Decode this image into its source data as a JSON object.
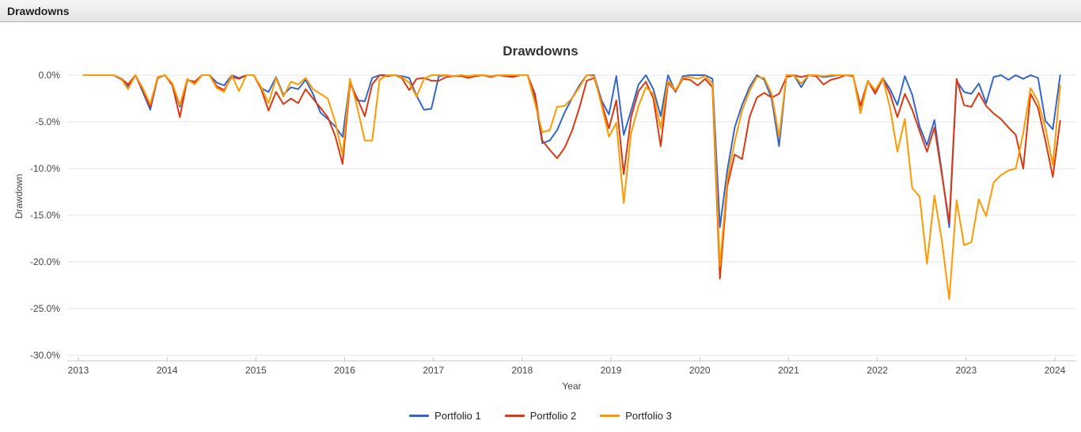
{
  "header": {
    "title": "Drawdowns"
  },
  "chart_data": {
    "type": "line",
    "title": "Drawdowns",
    "xlabel": "Year",
    "ylabel": "Drawdown",
    "x_tick_labels": [
      "2013",
      "2014",
      "2015",
      "2016",
      "2017",
      "2018",
      "2019",
      "2020",
      "2021",
      "2022",
      "2023",
      "2024"
    ],
    "y_tick_labels": [
      "0.0%",
      "-5.0%",
      "-10.0%",
      "-15.0%",
      "-20.0%",
      "-25.0%",
      "-30.0%"
    ],
    "y_tick_values": [
      0,
      -5,
      -10,
      -15,
      -20,
      -25,
      -30
    ],
    "ylim": [
      -30,
      0
    ],
    "xlim": [
      2013,
      2024
    ],
    "x_start": "2013-01",
    "x_step": "1 month",
    "y_unit": "percent drawdown",
    "grid": true,
    "legend_position": "bottom",
    "series": [
      {
        "name": "Portfolio 1",
        "color": "#3366CC",
        "values": [
          0,
          0,
          0,
          0,
          0,
          -0.4,
          -1.2,
          0,
          -1.8,
          -3.7,
          -0.3,
          0,
          -1.0,
          -3.4,
          -0.5,
          -0.9,
          0,
          0,
          -0.8,
          -1.1,
          0,
          -0.3,
          0,
          0,
          -1.4,
          -1.8,
          -0.2,
          -2.1,
          -1.3,
          -1.5,
          -0.5,
          -2.0,
          -4.0,
          -4.7,
          -5.5,
          -6.6,
          -0.6,
          -2.7,
          -2.8,
          -0.3,
          0,
          0,
          0,
          -0.1,
          -0.3,
          -2.2,
          -3.7,
          -3.6,
          -0.1,
          0,
          -0.1,
          0,
          -0.1,
          0,
          0,
          -0.1,
          0,
          0,
          -0.1,
          0,
          0,
          -2.5,
          -7.3,
          -7.0,
          -5.9,
          -4.0,
          -2.5,
          -1.1,
          0,
          0,
          -2.7,
          -4.2,
          -0.1,
          -6.4,
          -3.8,
          -1.0,
          0,
          -1.5,
          -4.4,
          0,
          -1.8,
          -0.1,
          0,
          0,
          0,
          -0.4,
          -16.3,
          -10.2,
          -5.6,
          -3.2,
          -1.3,
          0,
          -0.5,
          -2.5,
          -7.6,
          0,
          0,
          -1.3,
          0,
          0,
          -0.2,
          -0.1,
          0,
          0,
          0,
          -4.0,
          -0.6,
          -1.8,
          -0.3,
          -1.5,
          -3.2,
          -0.1,
          -2.1,
          -5.5,
          -7.5,
          -4.8,
          -10.4,
          -16.3,
          -0.6,
          -1.8,
          -2.0,
          -0.9,
          -3.0,
          -0.2,
          0,
          -0.5,
          0,
          -0.4,
          0,
          -0.3,
          -4.9,
          -5.8,
          0
        ]
      },
      {
        "name": "Portfolio 2",
        "color": "#DC3912",
        "values": [
          0,
          0,
          0,
          0,
          0,
          -0.3,
          -1.0,
          0,
          -1.6,
          -3.4,
          -0.3,
          0,
          -1.1,
          -4.5,
          -0.5,
          -0.7,
          0,
          0,
          -1.2,
          -1.6,
          -0.2,
          -0.4,
          0,
          0,
          -1.5,
          -3.8,
          -1.8,
          -3.1,
          -2.5,
          -3.0,
          -1.5,
          -2.5,
          -3.5,
          -4.5,
          -6.5,
          -9.5,
          -0.9,
          -2.5,
          -4.4,
          -1.0,
          0,
          -0.1,
          0,
          -0.3,
          -1.6,
          -0.4,
          -0.3,
          -0.6,
          -0.6,
          -0.2,
          -0.1,
          -0.1,
          -0.3,
          -0.1,
          0,
          -0.2,
          0,
          -0.1,
          -0.2,
          0,
          0,
          -2.0,
          -7.0,
          -8.0,
          -8.9,
          -7.8,
          -6.0,
          -3.5,
          -0.6,
          -0.3,
          -2.9,
          -5.7,
          -2.7,
          -10.6,
          -4.5,
          -1.7,
          -0.7,
          -2.5,
          -7.6,
          -0.8,
          -1.7,
          -0.4,
          -0.5,
          -1.1,
          -0.4,
          -1.3,
          -21.8,
          -11.9,
          -8.5,
          -9.0,
          -4.5,
          -2.4,
          -1.9,
          -2.4,
          -2.0,
          -0.2,
          0,
          -0.2,
          0,
          -0.1,
          -1.0,
          -0.5,
          -0.3,
          0,
          -0.1,
          -3.3,
          -0.6,
          -2.0,
          -0.4,
          -2.0,
          -4.5,
          -2.0,
          -3.7,
          -6.0,
          -8.2,
          -5.6,
          -10.6,
          -15.8,
          -0.4,
          -3.2,
          -3.4,
          -1.9,
          -3.3,
          -4.1,
          -4.7,
          -5.6,
          -6.4,
          -10.0,
          -2.0,
          -3.5,
          -7.0,
          -10.9,
          -4.9
        ]
      },
      {
        "name": "Portfolio 3",
        "color": "#FF9900",
        "values": [
          0,
          0,
          0,
          0,
          0,
          -0.3,
          -1.5,
          0,
          -1.4,
          -3.1,
          -0.2,
          0,
          -0.9,
          -3.2,
          -0.4,
          -1.0,
          0,
          0,
          -1.4,
          -1.8,
          0,
          -1.7,
          0,
          0,
          -1.3,
          -3.0,
          -0.3,
          -2.3,
          -0.7,
          -1.0,
          -0.3,
          -1.5,
          -2.0,
          -2.5,
          -5.0,
          -8.5,
          -0.4,
          -3.5,
          -7.0,
          -7.0,
          -0.5,
          0,
          0,
          -0.2,
          -0.8,
          -2.3,
          -0.4,
          0,
          0,
          0,
          -0.1,
          0,
          -0.1,
          0,
          0,
          -0.1,
          0,
          0,
          0,
          0,
          0,
          -3.0,
          -6.1,
          -5.9,
          -3.4,
          -3.3,
          -2.5,
          -1.3,
          0,
          -0.1,
          -3.2,
          -6.6,
          -5.1,
          -13.7,
          -6.2,
          -3.3,
          -1.3,
          -2.0,
          -5.7,
          -0.6,
          -1.6,
          -0.3,
          -0.2,
          -0.4,
          -0.1,
          -0.9,
          -20.5,
          -11.2,
          -7.1,
          -3.8,
          -1.7,
          -0.2,
          -0.3,
          -2.0,
          -6.6,
          0,
          0,
          -0.9,
          0,
          0,
          -0.1,
          0,
          0,
          0,
          0,
          -4.1,
          -0.6,
          -1.6,
          -0.3,
          -3.5,
          -8.2,
          -4.7,
          -12.1,
          -13.0,
          -20.2,
          -12.9,
          -17.7,
          -24.0,
          -13.4,
          -18.2,
          -17.9,
          -13.3,
          -15.1,
          -11.5,
          -10.7,
          -10.2,
          -10.0,
          -6.2,
          -1.4,
          -2.8,
          -5.6,
          -9.6,
          -1.1
        ]
      }
    ]
  }
}
